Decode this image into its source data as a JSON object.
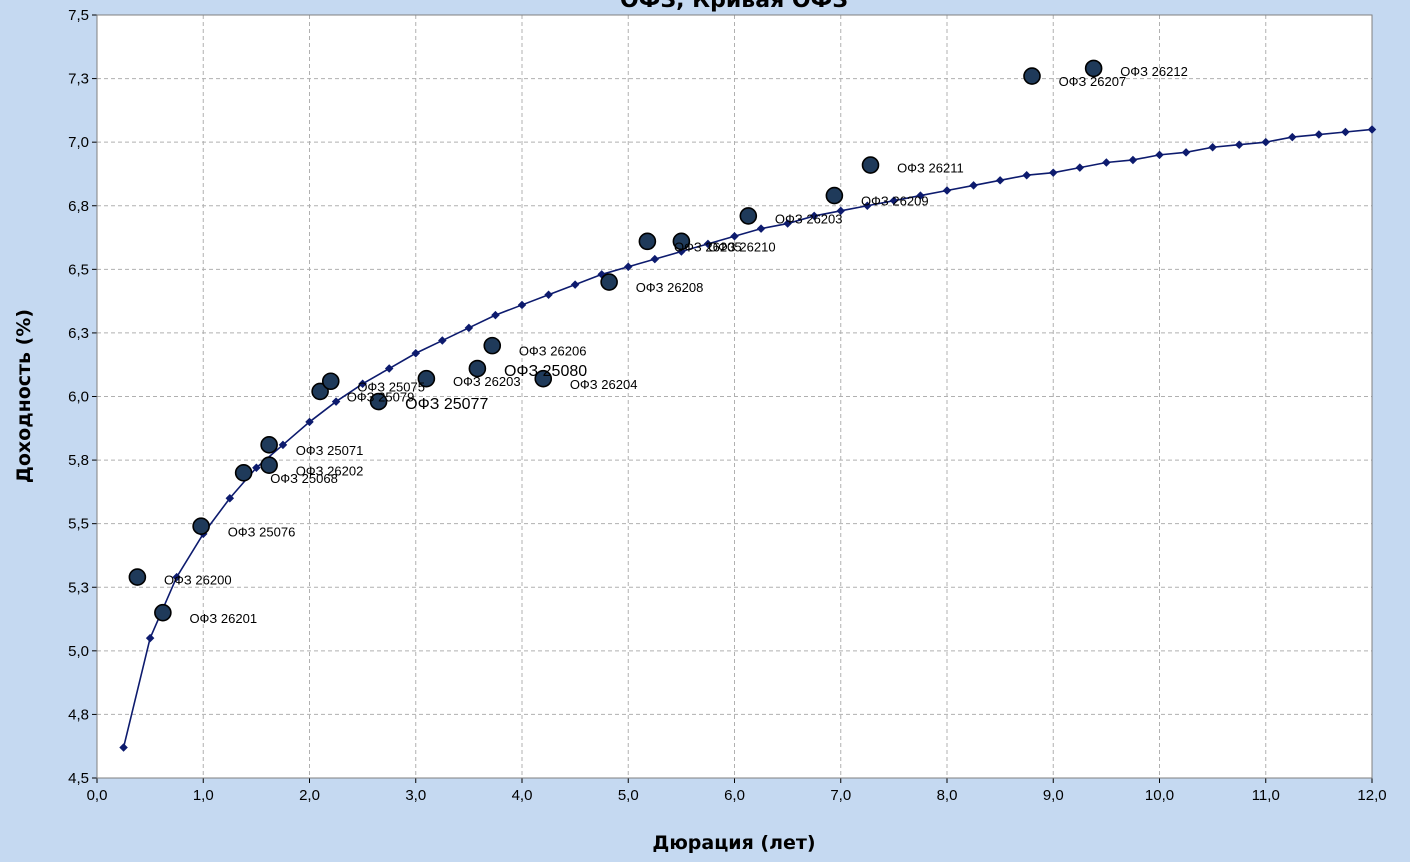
{
  "chart_data": {
    "type": "scatter",
    "title": "ОФЗ, Кривая ОФЗ",
    "xlabel": "Дюрация (лет)",
    "ylabel": "Доходность (%)",
    "xlim": [
      0.0,
      12.0
    ],
    "ylim": [
      4.5,
      7.5
    ],
    "x_ticks": [
      0,
      1,
      2,
      3,
      4,
      5,
      6,
      7,
      8,
      9,
      10,
      11,
      12
    ],
    "x_tick_labels": [
      "0,0",
      "1,0",
      "2,0",
      "3,0",
      "4,0",
      "5,0",
      "6,0",
      "7,0",
      "8,0",
      "9,0",
      "10,0",
      "11,0",
      "12,0"
    ],
    "y_ticks": [
      4.5,
      4.75,
      5.0,
      5.25,
      5.5,
      5.75,
      6.0,
      6.25,
      6.5,
      6.75,
      7.0,
      7.25,
      7.5
    ],
    "y_tick_labels": [
      "4,5",
      "4,8",
      "5,0",
      "5,3",
      "5,5",
      "5,8",
      "6,0",
      "6,3",
      "6,5",
      "6,8",
      "7,0",
      "7,3",
      "7,5"
    ],
    "grid": true,
    "colors": {
      "background": "#c5d9f1",
      "plot_area": "#ffffff",
      "curve": "#0d1b6e",
      "marker_fill": "#1f3a5a",
      "marker_stroke": "#000000",
      "grid": "#b0b0b0"
    },
    "curve": {
      "x": [
        0.25,
        0.5,
        0.75,
        1.0,
        1.25,
        1.5,
        1.75,
        2.0,
        2.25,
        2.5,
        2.75,
        3.0,
        3.25,
        3.5,
        3.75,
        4.0,
        4.25,
        4.5,
        4.75,
        5.0,
        5.25,
        5.5,
        5.75,
        6.0,
        6.25,
        6.5,
        6.75,
        7.0,
        7.25,
        7.5,
        7.75,
        8.0,
        8.25,
        8.5,
        8.75,
        9.0,
        9.25,
        9.5,
        9.75,
        10.0,
        10.25,
        10.5,
        10.75,
        11.0,
        11.25,
        11.5,
        11.75,
        12.0
      ],
      "y": [
        4.62,
        5.05,
        5.29,
        5.46,
        5.6,
        5.72,
        5.81,
        5.9,
        5.98,
        6.05,
        6.11,
        6.17,
        6.22,
        6.27,
        6.32,
        6.36,
        6.4,
        6.44,
        6.48,
        6.51,
        6.54,
        6.57,
        6.6,
        6.63,
        6.66,
        6.68,
        6.71,
        6.73,
        6.75,
        6.77,
        6.79,
        6.81,
        6.83,
        6.85,
        6.87,
        6.88,
        6.9,
        6.92,
        6.93,
        6.95,
        6.96,
        6.98,
        6.99,
        7.0,
        7.02,
        7.03,
        7.04,
        7.05
      ]
    },
    "bonds": [
      {
        "name": "ОФЗ 26200",
        "x": 0.38,
        "y": 5.29,
        "lx": 0.63,
        "ly": 5.28,
        "big": false
      },
      {
        "name": "ОФЗ 26201",
        "x": 0.62,
        "y": 5.15,
        "lx": 0.87,
        "ly": 5.13,
        "big": false
      },
      {
        "name": "ОФЗ 25076",
        "x": 0.98,
        "y": 5.49,
        "lx": 1.23,
        "ly": 5.47,
        "big": false
      },
      {
        "name": "ОФЗ 25068",
        "x": 1.38,
        "y": 5.7,
        "lx": 1.63,
        "ly": 5.68,
        "big": false
      },
      {
        "name": "ОФЗ 25071",
        "x": 1.62,
        "y": 5.81,
        "lx": 1.87,
        "ly": 5.79,
        "big": false
      },
      {
        "name": "ОФЗ 26202",
        "x": 1.62,
        "y": 5.73,
        "lx": 1.87,
        "ly": 5.71,
        "big": false
      },
      {
        "name": "ОФЗ 25079",
        "x": 2.1,
        "y": 6.02,
        "lx": 2.35,
        "ly": 6.0,
        "big": false
      },
      {
        "name": "ОФЗ 25075",
        "x": 2.2,
        "y": 6.06,
        "lx": 2.45,
        "ly": 6.04,
        "big": false
      },
      {
        "name": "ОФЗ 25077",
        "x": 2.65,
        "y": 5.98,
        "lx": 2.9,
        "ly": 5.97,
        "big": true
      },
      {
        "name": "ОФЗ 26203",
        "x": 3.1,
        "y": 6.07,
        "lx": 3.35,
        "ly": 6.06,
        "big": false
      },
      {
        "name": "ОФЗ 25080",
        "x": 3.58,
        "y": 6.11,
        "lx": 3.83,
        "ly": 6.1,
        "big": true
      },
      {
        "name": "ОФЗ 26206",
        "x": 3.72,
        "y": 6.2,
        "lx": 3.97,
        "ly": 6.18,
        "big": false
      },
      {
        "name": "ОФЗ 26204",
        "x": 4.2,
        "y": 6.07,
        "lx": 4.45,
        "ly": 6.05,
        "big": false
      },
      {
        "name": "ОФЗ 26208",
        "x": 4.82,
        "y": 6.45,
        "lx": 5.07,
        "ly": 6.43,
        "big": false
      },
      {
        "name": "ОФЗ 26205",
        "x": 5.18,
        "y": 6.61,
        "lx": 5.43,
        "ly": 6.59,
        "big": false
      },
      {
        "name": "ОФЗ 26210",
        "x": 5.5,
        "y": 6.61,
        "lx": 5.75,
        "ly": 6.59,
        "big": false
      },
      {
        "name": "ОФЗ 26203",
        "x": 6.13,
        "y": 6.71,
        "lx": 6.38,
        "ly": 6.7,
        "big": false
      },
      {
        "name": "ОФЗ 26209",
        "x": 6.94,
        "y": 6.79,
        "lx": 7.19,
        "ly": 6.77,
        "big": false
      },
      {
        "name": "ОФЗ 26211",
        "x": 7.28,
        "y": 6.91,
        "lx": 7.53,
        "ly": 6.9,
        "big": false
      },
      {
        "name": "ОФЗ 26207",
        "x": 8.8,
        "y": 7.26,
        "lx": 9.05,
        "ly": 7.24,
        "big": false
      },
      {
        "name": "ОФЗ 26212",
        "x": 9.38,
        "y": 7.29,
        "lx": 9.63,
        "ly": 7.28,
        "big": false
      }
    ]
  }
}
